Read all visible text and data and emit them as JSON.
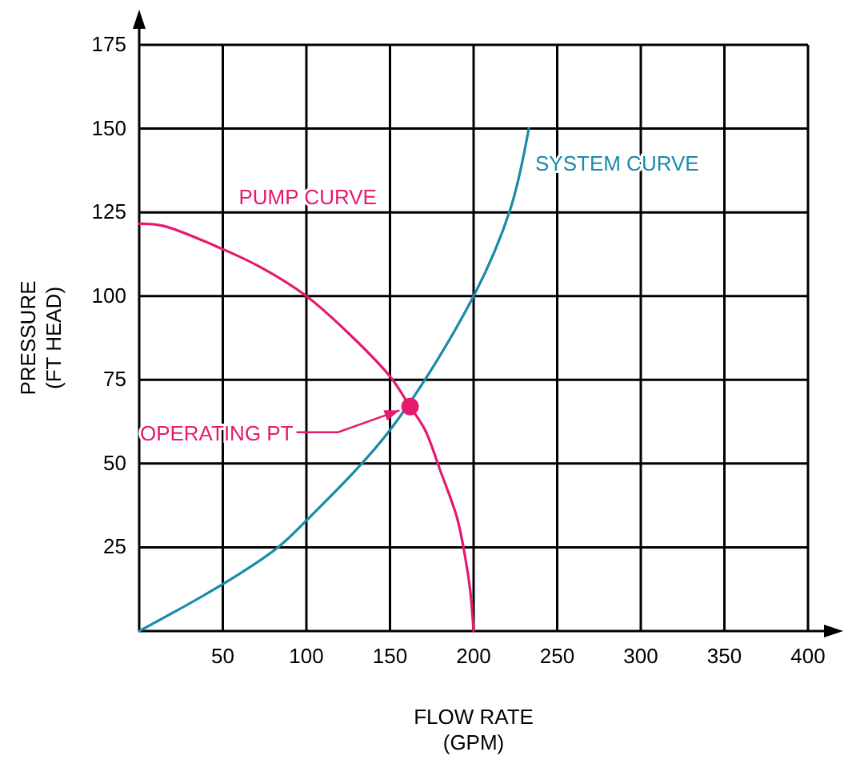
{
  "chart_data": {
    "type": "line",
    "xlabel": "FLOW RATE\n(GPM)",
    "ylabel": "PRESSURE\n(FT HEAD)",
    "xlim": [
      0,
      400
    ],
    "xticks": [
      50,
      100,
      150,
      200,
      250,
      300,
      350,
      400
    ],
    "ylim": [
      0,
      175
    ],
    "yticks": [
      25,
      50,
      75,
      100,
      125,
      150,
      175
    ],
    "grid": true,
    "marker": "none",
    "line_style": "solid",
    "series": [
      {
        "name": "PUMP CURVE",
        "color": "#e6196e",
        "x": [
          0,
          14,
          50,
          73,
          100,
          125,
          150,
          162,
          171,
          180,
          190,
          195,
          198,
          200
        ],
        "values": [
          121.6,
          121,
          114,
          108.5,
          100,
          89,
          76,
          67,
          60,
          48,
          34,
          22,
          12,
          0
        ]
      },
      {
        "name": "SYSTEM CURVE",
        "color": "#1a8aaa",
        "x": [
          0,
          50,
          83,
          100,
          150,
          200,
          222,
          233
        ],
        "values": [
          0,
          14,
          25,
          33,
          60,
          100,
          126,
          150
        ]
      },
      {
        "type": "scatter",
        "color": "#e6196e",
        "marker": "circle",
        "x": [
          162
        ],
        "values": [
          67
        ]
      }
    ],
    "annotations": [
      {
        "text": "OPERATING PT",
        "x": 162,
        "y": 67
      }
    ]
  }
}
